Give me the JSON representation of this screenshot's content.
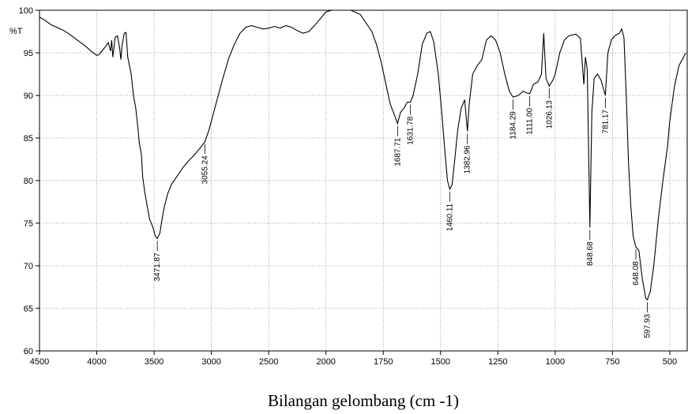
{
  "chart_data": {
    "type": "line",
    "ylabel": "%T",
    "xlabel": "Bilangan gelombang (cm -1)",
    "xlim": [
      4500,
      424
    ],
    "xticks": [
      4500,
      4000,
      3500,
      3000,
      2500,
      2000,
      1750,
      1500,
      1250,
      1000,
      750,
      500
    ],
    "ylim": [
      60,
      100
    ],
    "yticks": [
      60,
      65,
      70,
      75,
      80,
      85,
      90,
      95,
      100
    ],
    "grid": true,
    "color": "#000000",
    "x": [
      4500,
      4450,
      4400,
      4350,
      4300,
      4250,
      4200,
      4150,
      4100,
      4050,
      4000,
      3980,
      3950,
      3920,
      3900,
      3880,
      3870,
      3860,
      3840,
      3820,
      3800,
      3790,
      3780,
      3760,
      3745,
      3730,
      3700,
      3680,
      3660,
      3640,
      3630,
      3610,
      3600,
      3580,
      3560,
      3540,
      3510,
      3490,
      3471.87,
      3450,
      3430,
      3410,
      3380,
      3350,
      3300,
      3250,
      3200,
      3150,
      3100,
      3055.24,
      3020,
      3000,
      2950,
      2900,
      2850,
      2800,
      2750,
      2700,
      2650,
      2600,
      2550,
      2500,
      2450,
      2400,
      2350,
      2300,
      2250,
      2200,
      2150,
      2100,
      2050,
      2000,
      1950,
      1900,
      1850,
      1800,
      1780,
      1760,
      1740,
      1720,
      1700,
      1687.71,
      1675,
      1660,
      1645,
      1631.78,
      1620,
      1600,
      1580,
      1560,
      1545,
      1530,
      1510,
      1495,
      1480,
      1470,
      1460.11,
      1450,
      1440,
      1425,
      1410,
      1395,
      1382.96,
      1375,
      1360,
      1340,
      1320,
      1300,
      1280,
      1260,
      1240,
      1220,
      1200,
      1184.29,
      1160,
      1140,
      1125,
      1111,
      1095,
      1075,
      1060,
      1050,
      1040,
      1026.13,
      1010,
      1000,
      980,
      960,
      940,
      910,
      890,
      875,
      868,
      860,
      848.68,
      840,
      830,
      815,
      800,
      781.17,
      770,
      755,
      740,
      720,
      710,
      700,
      690,
      680,
      670,
      660,
      648.08,
      635,
      620,
      605,
      597.93,
      585,
      570,
      550,
      530,
      510,
      500,
      480,
      460,
      440,
      430
    ],
    "y": [
      99.2,
      98.8,
      98.3,
      98,
      97.7,
      97.3,
      96.8,
      96.3,
      95.8,
      95.2,
      94.7,
      94.8,
      95.3,
      95.8,
      96.2,
      95.2,
      96.5,
      94.5,
      96.8,
      97,
      95.5,
      94.2,
      95.8,
      97.3,
      97.4,
      94.5,
      92.5,
      90,
      88.5,
      86,
      84.5,
      83,
      80.5,
      78.5,
      77,
      75.5,
      74.5,
      73.5,
      73.2,
      73.8,
      75.5,
      77,
      78.5,
      79.5,
      80.5,
      81.5,
      82.3,
      83,
      83.8,
      84.6,
      86,
      87,
      89.5,
      92,
      94.3,
      96,
      97.3,
      98,
      98.2,
      98,
      97.8,
      97.9,
      98.1,
      97.9,
      98.2,
      98,
      97.6,
      97.3,
      97.5,
      98.2,
      99,
      99.8,
      100.2,
      100.1,
      99.5,
      97.5,
      96,
      94,
      91.5,
      89,
      87.6,
      86.7,
      88,
      88.5,
      89.2,
      89.2,
      90,
      92.5,
      96,
      97.3,
      97.5,
      96.3,
      92.5,
      88,
      83,
      80,
      79,
      79.5,
      82,
      86,
      88.5,
      89.5,
      85.8,
      89,
      92.5,
      93.5,
      94.2,
      96.5,
      97,
      96.5,
      95,
      92.5,
      90.5,
      89.8,
      90,
      90.5,
      90.3,
      90.2,
      91.3,
      91.6,
      92.5,
      97.3,
      92,
      91.1,
      91.8,
      92.5,
      95,
      96.5,
      97,
      97.2,
      96.7,
      91.3,
      94.5,
      93,
      74.5,
      88,
      92,
      92.5,
      91.8,
      90,
      95,
      96.5,
      97,
      97.3,
      97.8,
      96.8,
      90,
      82,
      77,
      73.5,
      72.2,
      71.8,
      68.5,
      66.2,
      66,
      67,
      70,
      75.5,
      80,
      84,
      87,
      91,
      93.5,
      94.5,
      95
    ],
    "peaks": [
      {
        "x": 3471.87,
        "y": 73.2
      },
      {
        "x": 3055.24,
        "y": 84.6
      },
      {
        "x": 1687.71,
        "y": 86.7
      },
      {
        "x": 1631.78,
        "y": 89.2
      },
      {
        "x": 1460.11,
        "y": 79
      },
      {
        "x": 1382.96,
        "y": 85.8
      },
      {
        "x": 1184.29,
        "y": 89.8
      },
      {
        "x": {
          "value": 1111,
          "label": "1111.00"
        },
        "y": 90.2
      },
      {
        "x": 1026.13,
        "y": 91.1
      },
      {
        "x": 848.68,
        "y": 74.5
      },
      {
        "x": 781.17,
        "y": 90
      },
      {
        "x": 648.08,
        "y": 72.2
      },
      {
        "x": 597.93,
        "y": 66
      }
    ]
  }
}
